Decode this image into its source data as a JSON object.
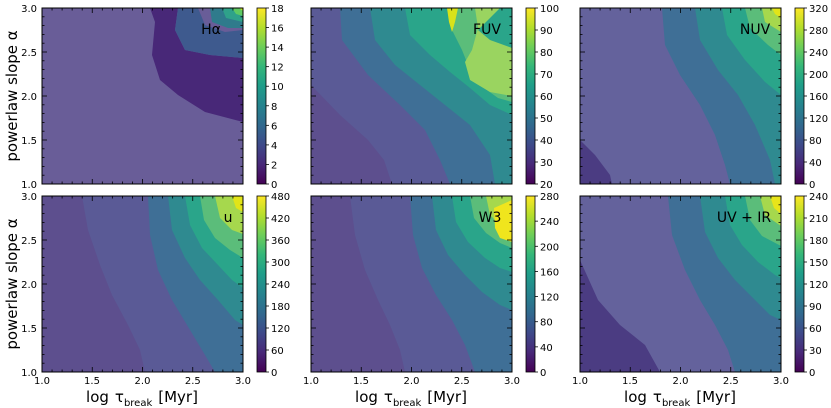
{
  "chart_data": {
    "type": "contour",
    "shared": {
      "xlabel_prefix": "log",
      "xlabel_symbol": "τ",
      "xlabel_subscript": "break",
      "xlabel_unit": "[Myr]",
      "ylabel": "powerlaw  slope  α",
      "x_range": [
        1.0,
        3.0
      ],
      "y_range": [
        1.0,
        3.0
      ],
      "x_ticks": [
        "1.0",
        "1.5",
        "2.0",
        "2.5",
        "3.0"
      ],
      "y_ticks": [
        "1.0",
        "1.5",
        "2.0",
        "2.5",
        "3.0"
      ]
    },
    "panels": [
      {
        "label": "Hα",
        "colorbar_ticks": [
          "0",
          "2",
          "4",
          "6",
          "8",
          "10",
          "12",
          "14",
          "16",
          "18"
        ],
        "cbar_range": [
          0,
          18
        ]
      },
      {
        "label": "FUV",
        "colorbar_ticks": [
          "20",
          "30",
          "40",
          "50",
          "60",
          "70",
          "80",
          "90",
          "100"
        ],
        "cbar_range": [
          20,
          100
        ]
      },
      {
        "label": "NUV",
        "colorbar_ticks": [
          "0",
          "40",
          "80",
          "120",
          "160",
          "200",
          "240",
          "280",
          "320"
        ],
        "cbar_range": [
          0,
          320
        ]
      },
      {
        "label": "u",
        "colorbar_ticks": [
          "0",
          "60",
          "120",
          "180",
          "240",
          "300",
          "360",
          "420",
          "480"
        ],
        "cbar_range": [
          0,
          480
        ]
      },
      {
        "label": "W3",
        "colorbar_ticks": [
          "0",
          "40",
          "80",
          "120",
          "160",
          "200",
          "240",
          "280"
        ],
        "cbar_range": [
          0,
          280
        ]
      },
      {
        "label": "UV + IR",
        "colorbar_ticks": [
          "0",
          "30",
          "60",
          "90",
          "120",
          "150",
          "180",
          "210",
          "240"
        ],
        "cbar_range": [
          0,
          240
        ]
      }
    ],
    "colormap": [
      "#440154",
      "#482878",
      "#3e4989",
      "#31688e",
      "#26828e",
      "#1f9e89",
      "#35b779",
      "#6ece58",
      "#b5de2b",
      "#fde725"
    ]
  }
}
